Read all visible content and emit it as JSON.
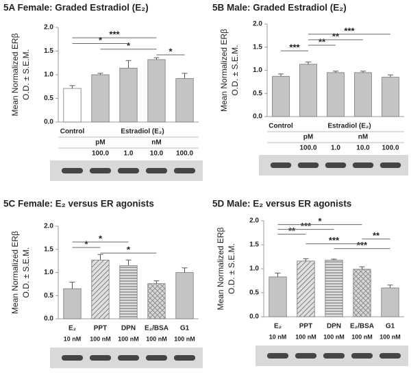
{
  "chart_data": [
    {
      "type": "bar",
      "title": "5A  Female:  Graded Estradiol (E₂)",
      "ylabel": "Mean Normalized ERβ",
      "ylabel2": "O.D. ± S.E.M.",
      "categories": [
        null,
        "100.0",
        "1.0",
        "10.0",
        "100.0"
      ],
      "group_labels": [
        {
          "text": "Control",
          "from": 0,
          "to": 0
        },
        {
          "text": "Estradiol (E₂)",
          "from": 1,
          "to": 4
        }
      ],
      "unit_labels": [
        {
          "text": "pM",
          "from": 1,
          "to": 1
        },
        {
          "text": "nM",
          "from": 2,
          "to": 4
        }
      ],
      "values": [
        0.71,
        1.0,
        1.14,
        1.32,
        0.92
      ],
      "errors": [
        0.06,
        0.03,
        0.16,
        0.04,
        0.11
      ],
      "colors": [
        "#ffffff",
        "#c4c4c4",
        "#c4c4c4",
        "#c4c4c4",
        "#c4c4c4"
      ],
      "annotations": [
        {
          "text": "*",
          "from": 3,
          "to": 4
        },
        {
          "text": "*",
          "from": 1,
          "to": 3
        },
        {
          "text": "*",
          "from": 0,
          "to": 2
        },
        {
          "text": "***",
          "from": 0,
          "to": 3
        }
      ],
      "ylim": [
        0,
        2
      ],
      "yticks": [
        {
          "value": 0,
          "label": "0.0"
        },
        {
          "value": 0.5,
          "label": "0.5"
        },
        {
          "value": 1,
          "label": "1.0"
        },
        {
          "value": 1.5,
          "label": "1.5"
        },
        {
          "value": 2,
          "label": "2.0"
        }
      ]
    },
    {
      "type": "bar",
      "title": "5B  Male:  Graded Estradiol (E₂)",
      "ylabel": "Mean Normalized ERβ",
      "ylabel2": "O.D. ± S.E.M.",
      "categories": [
        null,
        "100.0",
        "1.0",
        "10.0",
        "100.0"
      ],
      "group_labels": [
        {
          "text": "Control",
          "from": 0,
          "to": 0
        },
        {
          "text": "Estradiol (E₂)",
          "from": 1,
          "to": 4
        }
      ],
      "unit_labels": [
        {
          "text": "pM",
          "from": 1,
          "to": 1
        },
        {
          "text": "nM",
          "from": 2,
          "to": 4
        }
      ],
      "values": [
        0.87,
        1.13,
        0.95,
        0.95,
        0.85
      ],
      "errors": [
        0.05,
        0.05,
        0.03,
        0.03,
        0.05
      ],
      "colors": [
        "#c4c4c4",
        "#c4c4c4",
        "#c4c4c4",
        "#c4c4c4",
        "#c4c4c4"
      ],
      "annotations": [
        {
          "text": "***",
          "from": 0,
          "to": 1
        },
        {
          "text": "**",
          "from": 1,
          "to": 2
        },
        {
          "text": "**",
          "from": 1,
          "to": 3
        },
        {
          "text": "***",
          "from": 1,
          "to": 4
        }
      ],
      "ylim": [
        0,
        2
      ],
      "yticks": [
        {
          "value": 0,
          "label": "0.0"
        },
        {
          "value": 0.5,
          "label": "0.5"
        },
        {
          "value": 1,
          "label": "1.0"
        },
        {
          "value": 1.5,
          "label": "1.5"
        },
        {
          "value": 2,
          "label": "2.0"
        }
      ]
    },
    {
      "type": "bar",
      "title": "5C  Female:  E₂ versus ER agonists",
      "ylabel": "Mean Normalized ERβ",
      "ylabel2": "O.D. ± S.E.M.",
      "categories": [
        "E₂",
        "PPT",
        "DPN",
        "E₂/BSA",
        "G1"
      ],
      "doses": [
        "10 nM",
        "100 nM",
        "100 nM",
        "100 nM",
        "100 nM"
      ],
      "values": [
        0.65,
        1.27,
        1.15,
        0.76,
        1.0
      ],
      "errors": [
        0.14,
        0.12,
        0.12,
        0.06,
        0.1
      ],
      "colors": [
        "#c4c4c4",
        "#c4c4c4",
        "#c4c4c4",
        "#c4c4c4",
        "#c4c4c4"
      ],
      "patterns": [
        "solid",
        "diagonal",
        "horizontal",
        "crosshatch",
        "solid"
      ],
      "annotations": [
        {
          "text": "*",
          "from": 1,
          "to": 3
        },
        {
          "text": "*",
          "from": 0,
          "to": 1
        },
        {
          "text": "*",
          "from": 0,
          "to": 2
        }
      ],
      "ylim": [
        0,
        2
      ],
      "yticks": [
        {
          "value": 0,
          "label": "0.0"
        },
        {
          "value": 0.5,
          "label": "0.5"
        },
        {
          "value": 1,
          "label": "1.0"
        },
        {
          "value": 1.5,
          "label": "1.5"
        },
        {
          "value": 2,
          "label": "2.0"
        }
      ]
    },
    {
      "type": "bar",
      "title": "5D  Male:  E₂ versus ER agonists",
      "ylabel": "Mean Normalized ERβ",
      "ylabel2": "O.D. ± S.E.M.",
      "categories": [
        "E₂",
        "PPT",
        "DPN",
        "E₂/BSA",
        "G1"
      ],
      "doses": [
        "10 nM",
        "100 nM",
        "100 nM",
        "100 nM",
        "100 nM"
      ],
      "values": [
        0.83,
        1.16,
        1.18,
        0.99,
        0.6
      ],
      "errors": [
        0.08,
        0.05,
        0.02,
        0.05,
        0.06
      ],
      "colors": [
        "#c4c4c4",
        "#c4c4c4",
        "#c4c4c4",
        "#c4c4c4",
        "#c4c4c4"
      ],
      "patterns": [
        "solid",
        "diagonal",
        "horizontal",
        "crosshatch",
        "solid"
      ],
      "annotations": [
        {
          "text": "***",
          "from": 2,
          "to": 4
        },
        {
          "text": "***",
          "from": 1,
          "to": 3
        },
        {
          "text": "**",
          "from": 3,
          "to": 4
        },
        {
          "text": "**",
          "from": 0,
          "to": 1
        },
        {
          "text": "***",
          "from": 0,
          "to": 2
        },
        {
          "text": "*",
          "from": 0,
          "to": 3
        }
      ],
      "ylim": [
        0,
        2
      ],
      "yticks": [
        {
          "value": 0,
          "label": "0.0"
        },
        {
          "value": 0.5,
          "label": "0.5"
        },
        {
          "value": 1,
          "label": "1.0"
        },
        {
          "value": 1.5,
          "label": "1.5"
        },
        {
          "value": 2,
          "label": "2.0"
        }
      ]
    }
  ]
}
